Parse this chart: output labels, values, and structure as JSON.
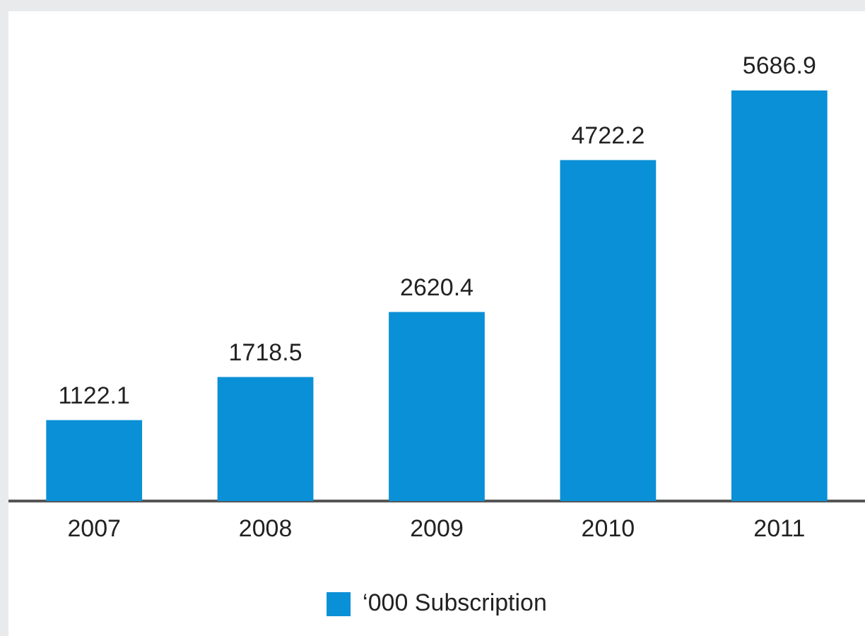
{
  "chart_data": {
    "type": "bar",
    "categories": [
      "2007",
      "2008",
      "2009",
      "2010",
      "2011"
    ],
    "series": [
      {
        "name": "‘000 Subscription",
        "color": "#0a90d6",
        "values": [
          1122.1,
          1718.5,
          2620.4,
          4722.2,
          5686.9
        ]
      }
    ],
    "data_labels": true,
    "legend": "bottom",
    "grid": false
  }
}
